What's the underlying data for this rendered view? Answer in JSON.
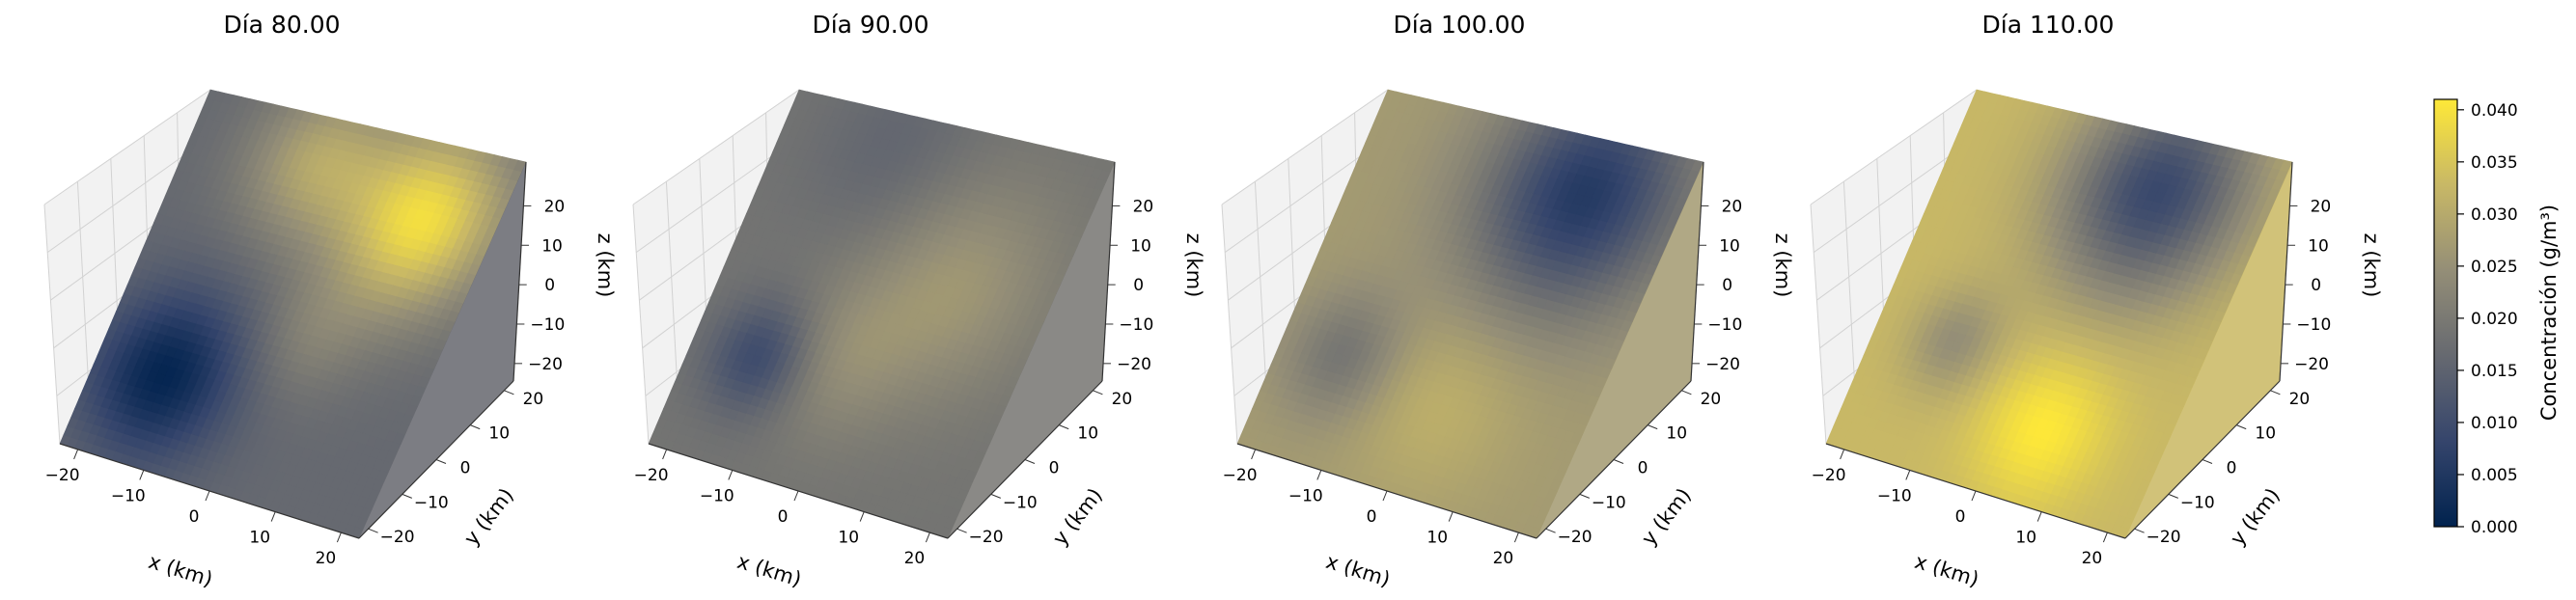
{
  "chart_data": {
    "type": "heatmap",
    "panels": [
      {
        "title": "Día 80.00",
        "field": "d80"
      },
      {
        "title": "Día 90.00",
        "field": "d90"
      },
      {
        "title": "Día 100.00",
        "field": "d100"
      },
      {
        "title": "Día 110.00",
        "field": "d110"
      }
    ],
    "xlabel": "x (km)",
    "ylabel": "y (km)",
    "zlabel": "z (km)",
    "x_ticks": [
      "−20",
      "−10",
      "0",
      "10",
      "20"
    ],
    "y_ticks": [
      "−20",
      "−10",
      "0",
      "10",
      "20"
    ],
    "z_ticks": [
      "20",
      "10",
      "0",
      "−10",
      "−20"
    ],
    "xlim": [
      -25,
      25
    ],
    "ylim": [
      -25,
      25
    ],
    "zlim": [
      -25,
      25
    ],
    "colorbar": {
      "label": "Concentración (g/m³)",
      "ticks": [
        "0.000",
        "0.005",
        "0.010",
        "0.015",
        "0.020",
        "0.025",
        "0.030",
        "0.035",
        "0.040"
      ],
      "vmin": 0.0,
      "vmax": 0.041,
      "colormap": "cividis",
      "colors": [
        "#00224e",
        "#35456c",
        "#666970",
        "#948e77",
        "#c8b866",
        "#fee838"
      ]
    }
  }
}
